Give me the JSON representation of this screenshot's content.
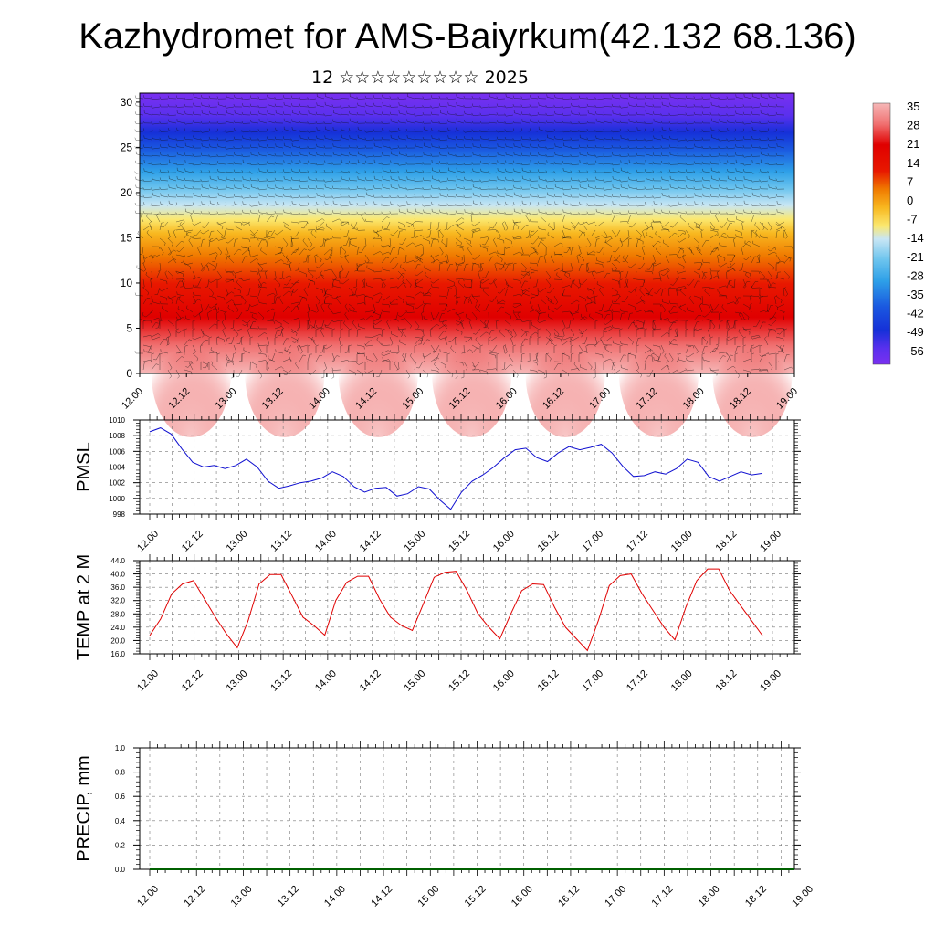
{
  "title": "Kazhydromet for AMS-Baiyrkum(42.132 68.136)",
  "subtitle": "12 ☆☆☆☆☆☆☆☆☆ 2025",
  "chart_data": [
    {
      "type": "heatmap",
      "name": "cross-section temperature and wind",
      "x_tick_labels": [
        "12.00",
        "12.12",
        "13.00",
        "13.12",
        "14.00",
        "14.12",
        "15.00",
        "15.12",
        "16.00",
        "16.12",
        "17.00",
        "17.12",
        "18.00",
        "18.12",
        "19.00"
      ],
      "y_ticks": [
        0,
        5,
        10,
        15,
        20,
        25,
        30
      ],
      "ylim": [
        0,
        31
      ],
      "colorbar_labels": [
        "35",
        "28",
        "21",
        "14",
        "7",
        "0",
        "-7",
        "-14",
        "-21",
        "-28",
        "-35",
        "-42",
        "-49",
        "-56"
      ],
      "colorbar_values": [
        35,
        28,
        21,
        14,
        7,
        0,
        -7,
        -14,
        -21,
        -28,
        -35,
        -42,
        -49,
        -56
      ],
      "colors": {
        "warmest": "#f6b8b8",
        "hot": "#e00000",
        "orange": "#f07a00",
        "yellow": "#fbe870",
        "pale": "#bfe0f2",
        "cyan": "#2ea0e8",
        "blue": "#1630d8",
        "violet": "#7a30f0"
      }
    },
    {
      "type": "line",
      "ylabel": "PMSL",
      "ylim": [
        998,
        1010
      ],
      "y_ticks": [
        998,
        1000,
        1002,
        1004,
        1006,
        1008,
        1010
      ],
      "x_tick_labels": [
        "12.00",
        "12.12",
        "13.00",
        "13.12",
        "14.00",
        "14.12",
        "15.00",
        "15.12",
        "16.00",
        "16.12",
        "17.00",
        "17.12",
        "18.00",
        "18.12",
        "19.00"
      ],
      "series": [
        {
          "color": "#1010d0",
          "values": [
            1008.5,
            1009.0,
            1008.2,
            1006.3,
            1004.6,
            1004.0,
            1004.2,
            1003.8,
            1004.2,
            1005.0,
            1004.0,
            1002.2,
            1001.3,
            1001.6,
            1002.0,
            1002.2,
            1002.6,
            1003.4,
            1002.8,
            1001.5,
            1000.8,
            1001.3,
            1001.4,
            1000.3,
            1000.6,
            1001.5,
            1001.2,
            999.8,
            998.6,
            1000.8,
            1002.2,
            1003.0,
            1004.0,
            1005.2,
            1006.2,
            1006.4,
            1005.2,
            1004.7,
            1005.8,
            1006.6,
            1006.2,
            1006.5,
            1006.9,
            1005.8,
            1004.1,
            1002.8,
            1002.9,
            1003.4,
            1003.1,
            1003.8,
            1005.0,
            1004.6,
            1002.8,
            1002.2,
            1002.8,
            1003.4,
            1003.0,
            1003.2
          ]
        }
      ]
    },
    {
      "type": "line",
      "ylabel": "TEMP at 2 M",
      "ylim": [
        16,
        44
      ],
      "y_tick_labels": [
        "16.0",
        "20.0",
        "24.0",
        "28.0",
        "32.0",
        "36.0",
        "40.0",
        "44.0"
      ],
      "y_ticks": [
        16,
        20,
        24,
        28,
        32,
        36,
        40,
        44
      ],
      "x_tick_labels": [
        "12.00",
        "12.12",
        "13.00",
        "13.12",
        "14.00",
        "14.12",
        "15.00",
        "15.12",
        "16.00",
        "16.12",
        "17.00",
        "17.12",
        "18.00",
        "18.12",
        "19.00"
      ],
      "series": [
        {
          "color": "#e00000",
          "values": [
            21.5,
            26.5,
            34.0,
            37.0,
            38.0,
            32.5,
            27.0,
            22.0,
            17.8,
            26.0,
            37.0,
            39.8,
            39.8,
            33.5,
            27.0,
            24.5,
            21.6,
            32.0,
            37.5,
            39.3,
            39.3,
            32.5,
            27.0,
            24.5,
            23.0,
            31.0,
            39.0,
            40.5,
            40.8,
            35.0,
            28.0,
            24.0,
            20.5,
            28.0,
            35.0,
            37.0,
            36.8,
            30.0,
            24.0,
            20.5,
            17.0,
            26.0,
            36.5,
            39.5,
            40.0,
            34.0,
            29.0,
            24.0,
            20.2,
            30.0,
            38.0,
            41.5,
            41.5,
            35.0,
            30.5,
            26.0,
            21.5
          ]
        }
      ]
    },
    {
      "type": "line",
      "ylabel": "PRECIP, mm",
      "ylim": [
        0,
        1
      ],
      "y_tick_labels": [
        "0.0",
        "0.2",
        "0.4",
        "0.6",
        "0.8",
        "1.0"
      ],
      "y_ticks": [
        0,
        0.2,
        0.4,
        0.6,
        0.8,
        1.0
      ],
      "x_tick_labels": [
        "12.00",
        "12.12",
        "13.00",
        "13.12",
        "14.00",
        "14.12",
        "15.00",
        "15.12",
        "16.00",
        "16.12",
        "17.00",
        "17.12",
        "18.00",
        "18.12",
        "19.00"
      ],
      "series": [
        {
          "color": "#006000",
          "values": [
            0,
            0,
            0,
            0,
            0,
            0,
            0,
            0,
            0,
            0,
            0,
            0,
            0,
            0,
            0,
            0,
            0,
            0,
            0,
            0,
            0,
            0,
            0,
            0,
            0,
            0,
            0,
            0,
            0,
            0,
            0,
            0,
            0,
            0,
            0,
            0,
            0,
            0,
            0,
            0,
            0,
            0,
            0,
            0,
            0,
            0,
            0,
            0,
            0,
            0,
            0,
            0,
            0,
            0,
            0,
            0,
            0,
            0,
            0
          ]
        }
      ]
    }
  ]
}
